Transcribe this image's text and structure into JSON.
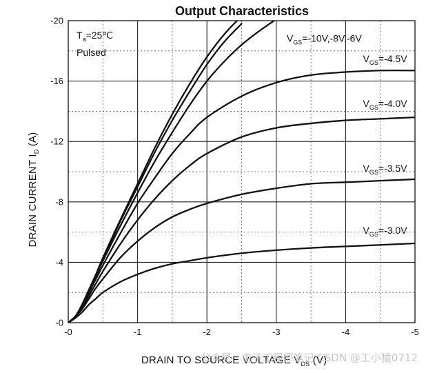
{
  "chart_data": {
    "type": "line",
    "title": "Output Characteristics",
    "xlabel": {
      "main": "DRAIN TO SOURCE VOLTAGE   V",
      "sub": "DS",
      "unit": "  (V)"
    },
    "ylabel": {
      "main": "DRAIN CURRENT   I",
      "sub": "D",
      "unit": "  (A)"
    },
    "xlim": [
      0,
      -5
    ],
    "ylim": [
      0,
      -20
    ],
    "x_ticks": [
      {
        "value": 0,
        "label": "-0"
      },
      {
        "value": -1,
        "label": "-1"
      },
      {
        "value": -2,
        "label": "-2"
      },
      {
        "value": -3,
        "label": "-3"
      },
      {
        "value": -4,
        "label": "-4"
      },
      {
        "value": -5,
        "label": "-5"
      }
    ],
    "y_ticks": [
      {
        "value": 0,
        "label": "-0"
      },
      {
        "value": -4,
        "label": "-4"
      },
      {
        "value": -8,
        "label": "-8"
      },
      {
        "value": -12,
        "label": "-12"
      },
      {
        "value": -16,
        "label": "-16"
      },
      {
        "value": -20,
        "label": "-20"
      }
    ],
    "grid": "major solid, minor dashed",
    "conditions": {
      "ta_main": "T",
      "ta_sub": "a",
      "ta_value": "=25℃",
      "pulsed": "Pulsed"
    },
    "series": [
      {
        "label_main": "V",
        "label_sub": "GS",
        "label_value": "=-10V,-8V,-6V",
        "x": [
          0,
          -0.1,
          -0.2,
          -0.3,
          -0.4,
          -0.5,
          -0.75,
          -1.0,
          -1.25,
          -1.5,
          -1.75,
          -2.0,
          -2.25,
          -2.5
        ],
        "y": [
          0,
          -0.4,
          -1.2,
          -2.2,
          -3.2,
          -4.3,
          -6.8,
          -9.2,
          -11.6,
          -13.8,
          -15.8,
          -17.6,
          -19.1,
          -20.3
        ]
      },
      {
        "x": [
          0,
          -0.1,
          -0.2,
          -0.3,
          -0.4,
          -0.5,
          -0.75,
          -1.0,
          -1.25,
          -1.5,
          -1.75,
          -2.0,
          -2.25,
          -2.5
        ],
        "y": [
          0,
          -0.4,
          -1.2,
          -2.2,
          -3.2,
          -4.2,
          -6.7,
          -9.0,
          -11.3,
          -13.4,
          -15.3,
          -17.1,
          -18.6,
          -19.8
        ]
      },
      {
        "x": [
          0,
          -0.1,
          -0.2,
          -0.3,
          -0.4,
          -0.5,
          -0.75,
          -1.0,
          -1.25,
          -1.5,
          -1.75,
          -2.0,
          -2.25,
          -2.5,
          -2.75,
          -3.0
        ],
        "y": [
          0,
          -0.4,
          -1.1,
          -2.1,
          -3.1,
          -4.1,
          -6.4,
          -8.6,
          -10.7,
          -12.6,
          -14.4,
          -16.0,
          -17.3,
          -18.4,
          -19.3,
          -20.1
        ]
      },
      {
        "label_main": "V",
        "label_sub": "GS",
        "label_value": "=-4.5V",
        "x": [
          0,
          -0.1,
          -0.2,
          -0.3,
          -0.4,
          -0.5,
          -0.75,
          -1.0,
          -1.25,
          -1.5,
          -1.75,
          -2.0,
          -2.5,
          -3.0,
          -3.5,
          -4.0,
          -4.5,
          -5.0
        ],
        "y": [
          0,
          -0.4,
          -1.1,
          -2.0,
          -2.9,
          -3.8,
          -5.9,
          -7.9,
          -9.6,
          -11.2,
          -12.5,
          -13.6,
          -15.0,
          -15.9,
          -16.4,
          -16.6,
          -16.7,
          -16.7
        ]
      },
      {
        "label_main": "V",
        "label_sub": "GS",
        "label_value": "=-4.0V",
        "x": [
          0,
          -0.1,
          -0.2,
          -0.3,
          -0.4,
          -0.5,
          -0.75,
          -1.0,
          -1.25,
          -1.5,
          -1.75,
          -2.0,
          -2.5,
          -3.0,
          -3.5,
          -4.0,
          -4.5,
          -5.0
        ],
        "y": [
          0,
          -0.4,
          -1.0,
          -1.8,
          -2.6,
          -3.4,
          -5.2,
          -6.8,
          -8.2,
          -9.4,
          -10.4,
          -11.2,
          -12.3,
          -12.9,
          -13.2,
          -13.4,
          -13.5,
          -13.6
        ]
      },
      {
        "label_main": "V",
        "label_sub": "GS",
        "label_value": "=-3.5V",
        "x": [
          0,
          -0.1,
          -0.2,
          -0.3,
          -0.4,
          -0.5,
          -0.75,
          -1.0,
          -1.25,
          -1.5,
          -1.75,
          -2.0,
          -2.5,
          -3.0,
          -3.5,
          -4.0,
          -4.5,
          -5.0
        ],
        "y": [
          0,
          -0.4,
          -0.9,
          -1.6,
          -2.3,
          -2.9,
          -4.3,
          -5.4,
          -6.3,
          -7.0,
          -7.5,
          -7.9,
          -8.5,
          -8.9,
          -9.2,
          -9.3,
          -9.4,
          -9.5
        ]
      },
      {
        "label_main": "V",
        "label_sub": "GS",
        "label_value": "=-3.0V",
        "x": [
          0,
          -0.1,
          -0.2,
          -0.3,
          -0.4,
          -0.5,
          -0.75,
          -1.0,
          -1.25,
          -1.5,
          -1.75,
          -2.0,
          -2.5,
          -3.0,
          -3.5,
          -4.0,
          -4.5,
          -5.0
        ],
        "y": [
          0,
          -0.3,
          -0.7,
          -1.2,
          -1.6,
          -2.0,
          -2.7,
          -3.2,
          -3.6,
          -3.9,
          -4.1,
          -4.3,
          -4.6,
          -4.8,
          -4.95,
          -5.05,
          -5.15,
          -5.25
        ]
      }
    ]
  },
  "watermark": {
    "text": "公众号 · 电子工程师笔记  CSDN @工小猿0712"
  }
}
